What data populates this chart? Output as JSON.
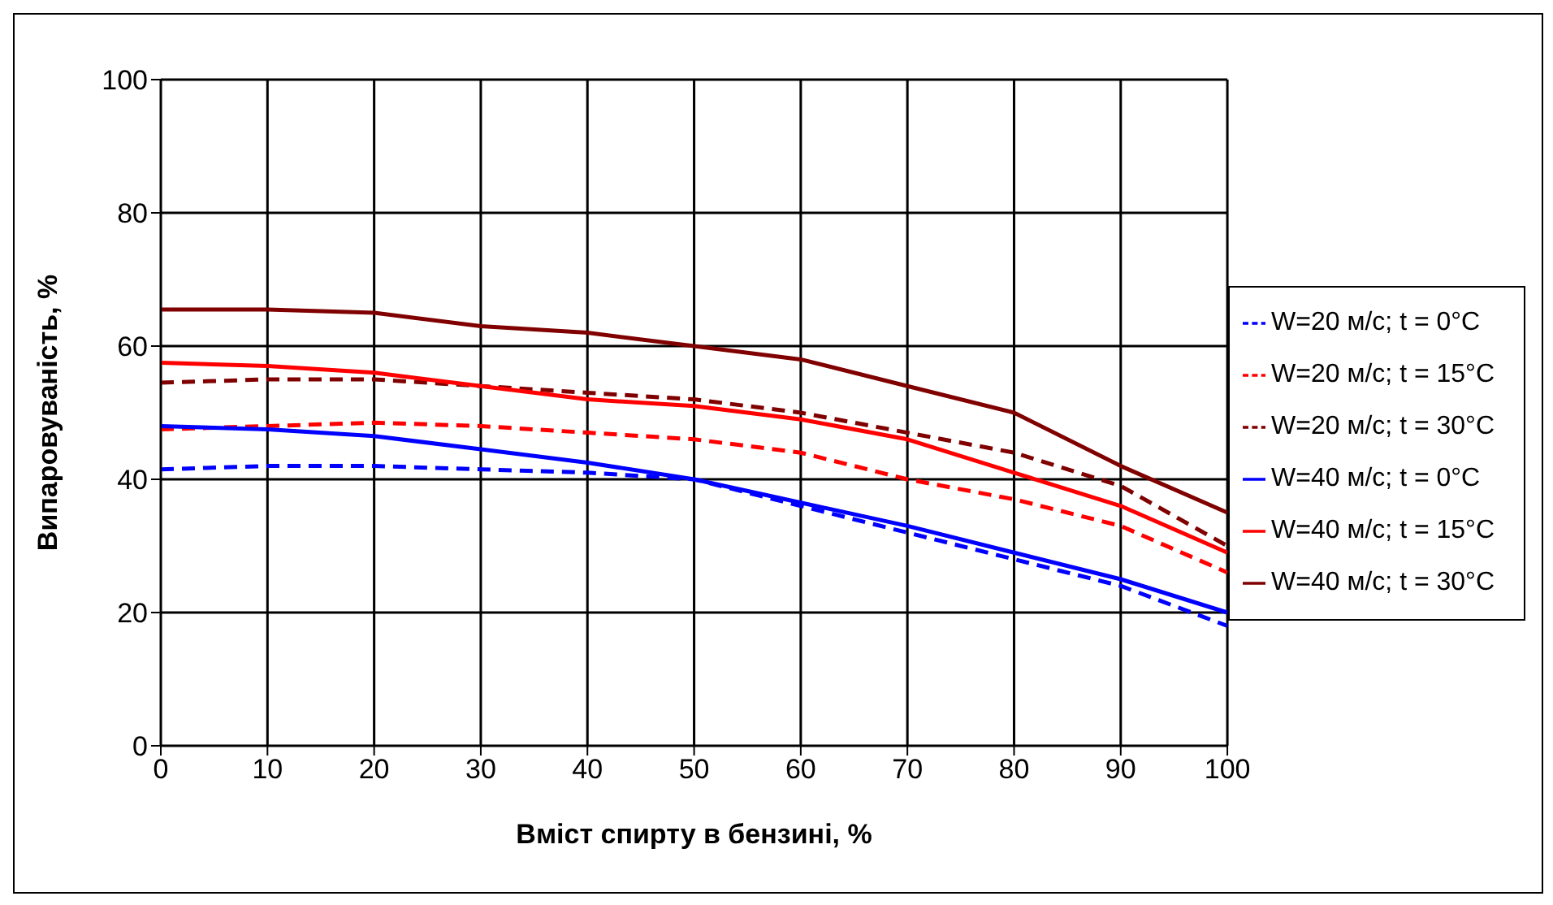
{
  "chart_data": {
    "type": "line",
    "xlabel": "Вміст спирту в бензині, %",
    "ylabel": "Випаровуваність, %",
    "x": [
      0,
      10,
      20,
      30,
      40,
      50,
      60,
      70,
      80,
      90,
      100
    ],
    "xlim": [
      0,
      100
    ],
    "xticks": [
      0,
      10,
      20,
      30,
      40,
      50,
      60,
      70,
      80,
      90,
      100
    ],
    "ylim": [
      0,
      100
    ],
    "yticks": [
      0,
      20,
      40,
      60,
      80,
      100
    ],
    "grid": true,
    "legend": "right",
    "marker": "none",
    "series": [
      {
        "name": "W=20 м/с; t = 0°C",
        "color": "#0000ff",
        "line_style": "dashed",
        "values": [
          41.5,
          42,
          42,
          41.5,
          41,
          40,
          36,
          32,
          28,
          24,
          18
        ]
      },
      {
        "name": "W=20 м/с; t = 15°C",
        "color": "#ff0000",
        "line_style": "dashed",
        "values": [
          47.5,
          48,
          48.5,
          48,
          47,
          46,
          44,
          40,
          37,
          33,
          26
        ]
      },
      {
        "name": "W=20 м/с; t = 30°C",
        "color": "#800000",
        "line_style": "dashed",
        "values": [
          54.5,
          55,
          55,
          54,
          53,
          52,
          50,
          47,
          44,
          39,
          30
        ]
      },
      {
        "name": "W=40 м/с; t = 0°C",
        "color": "#0000ff",
        "line_style": "solid",
        "values": [
          48,
          47.5,
          46.5,
          44.5,
          42.5,
          40,
          36.5,
          33,
          29,
          25,
          20
        ]
      },
      {
        "name": "W=40 м/с; t = 15°C",
        "color": "#ff0000",
        "line_style": "solid",
        "values": [
          57.5,
          57,
          56,
          54,
          52,
          51,
          49,
          46,
          41,
          36,
          29
        ]
      },
      {
        "name": "W=40 м/с; t = 30°C",
        "color": "#800000",
        "line_style": "solid",
        "values": [
          65.5,
          65.5,
          65,
          63,
          62,
          60,
          58,
          54,
          50,
          42,
          35
        ]
      }
    ]
  }
}
